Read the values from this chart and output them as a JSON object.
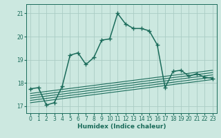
{
  "title": "",
  "xlabel": "Humidex (Indice chaleur)",
  "xlim": [
    -0.5,
    23.5
  ],
  "ylim": [
    16.7,
    21.4
  ],
  "yticks": [
    17,
    18,
    19,
    20,
    21
  ],
  "xticks": [
    0,
    1,
    2,
    3,
    4,
    5,
    6,
    7,
    8,
    9,
    10,
    11,
    12,
    13,
    14,
    15,
    16,
    17,
    18,
    19,
    20,
    21,
    22,
    23
  ],
  "bg_color": "#cce8e0",
  "grid_color": "#aaccc4",
  "line_color": "#1a6b5a",
  "main_line": {
    "x": [
      0,
      1,
      2,
      3,
      4,
      5,
      6,
      7,
      8,
      9,
      10,
      11,
      12,
      13,
      14,
      15,
      16,
      17,
      18,
      19,
      20,
      21,
      22,
      23
    ],
    "y": [
      17.75,
      17.8,
      17.05,
      17.15,
      17.85,
      19.2,
      19.3,
      18.8,
      19.1,
      19.85,
      19.9,
      21.0,
      20.55,
      20.35,
      20.35,
      20.25,
      19.65,
      17.8,
      18.5,
      18.55,
      18.3,
      18.4,
      18.25,
      18.2
    ]
  },
  "ref_lines": [
    {
      "x0": 0,
      "y0": 17.55,
      "x1": 23,
      "y1": 18.55
    },
    {
      "x0": 0,
      "y0": 17.45,
      "x1": 23,
      "y1": 18.45
    },
    {
      "x0": 0,
      "y0": 17.35,
      "x1": 23,
      "y1": 18.35
    },
    {
      "x0": 0,
      "y0": 17.25,
      "x1": 23,
      "y1": 18.25
    },
    {
      "x0": 0,
      "y0": 17.15,
      "x1": 23,
      "y1": 18.15
    }
  ]
}
